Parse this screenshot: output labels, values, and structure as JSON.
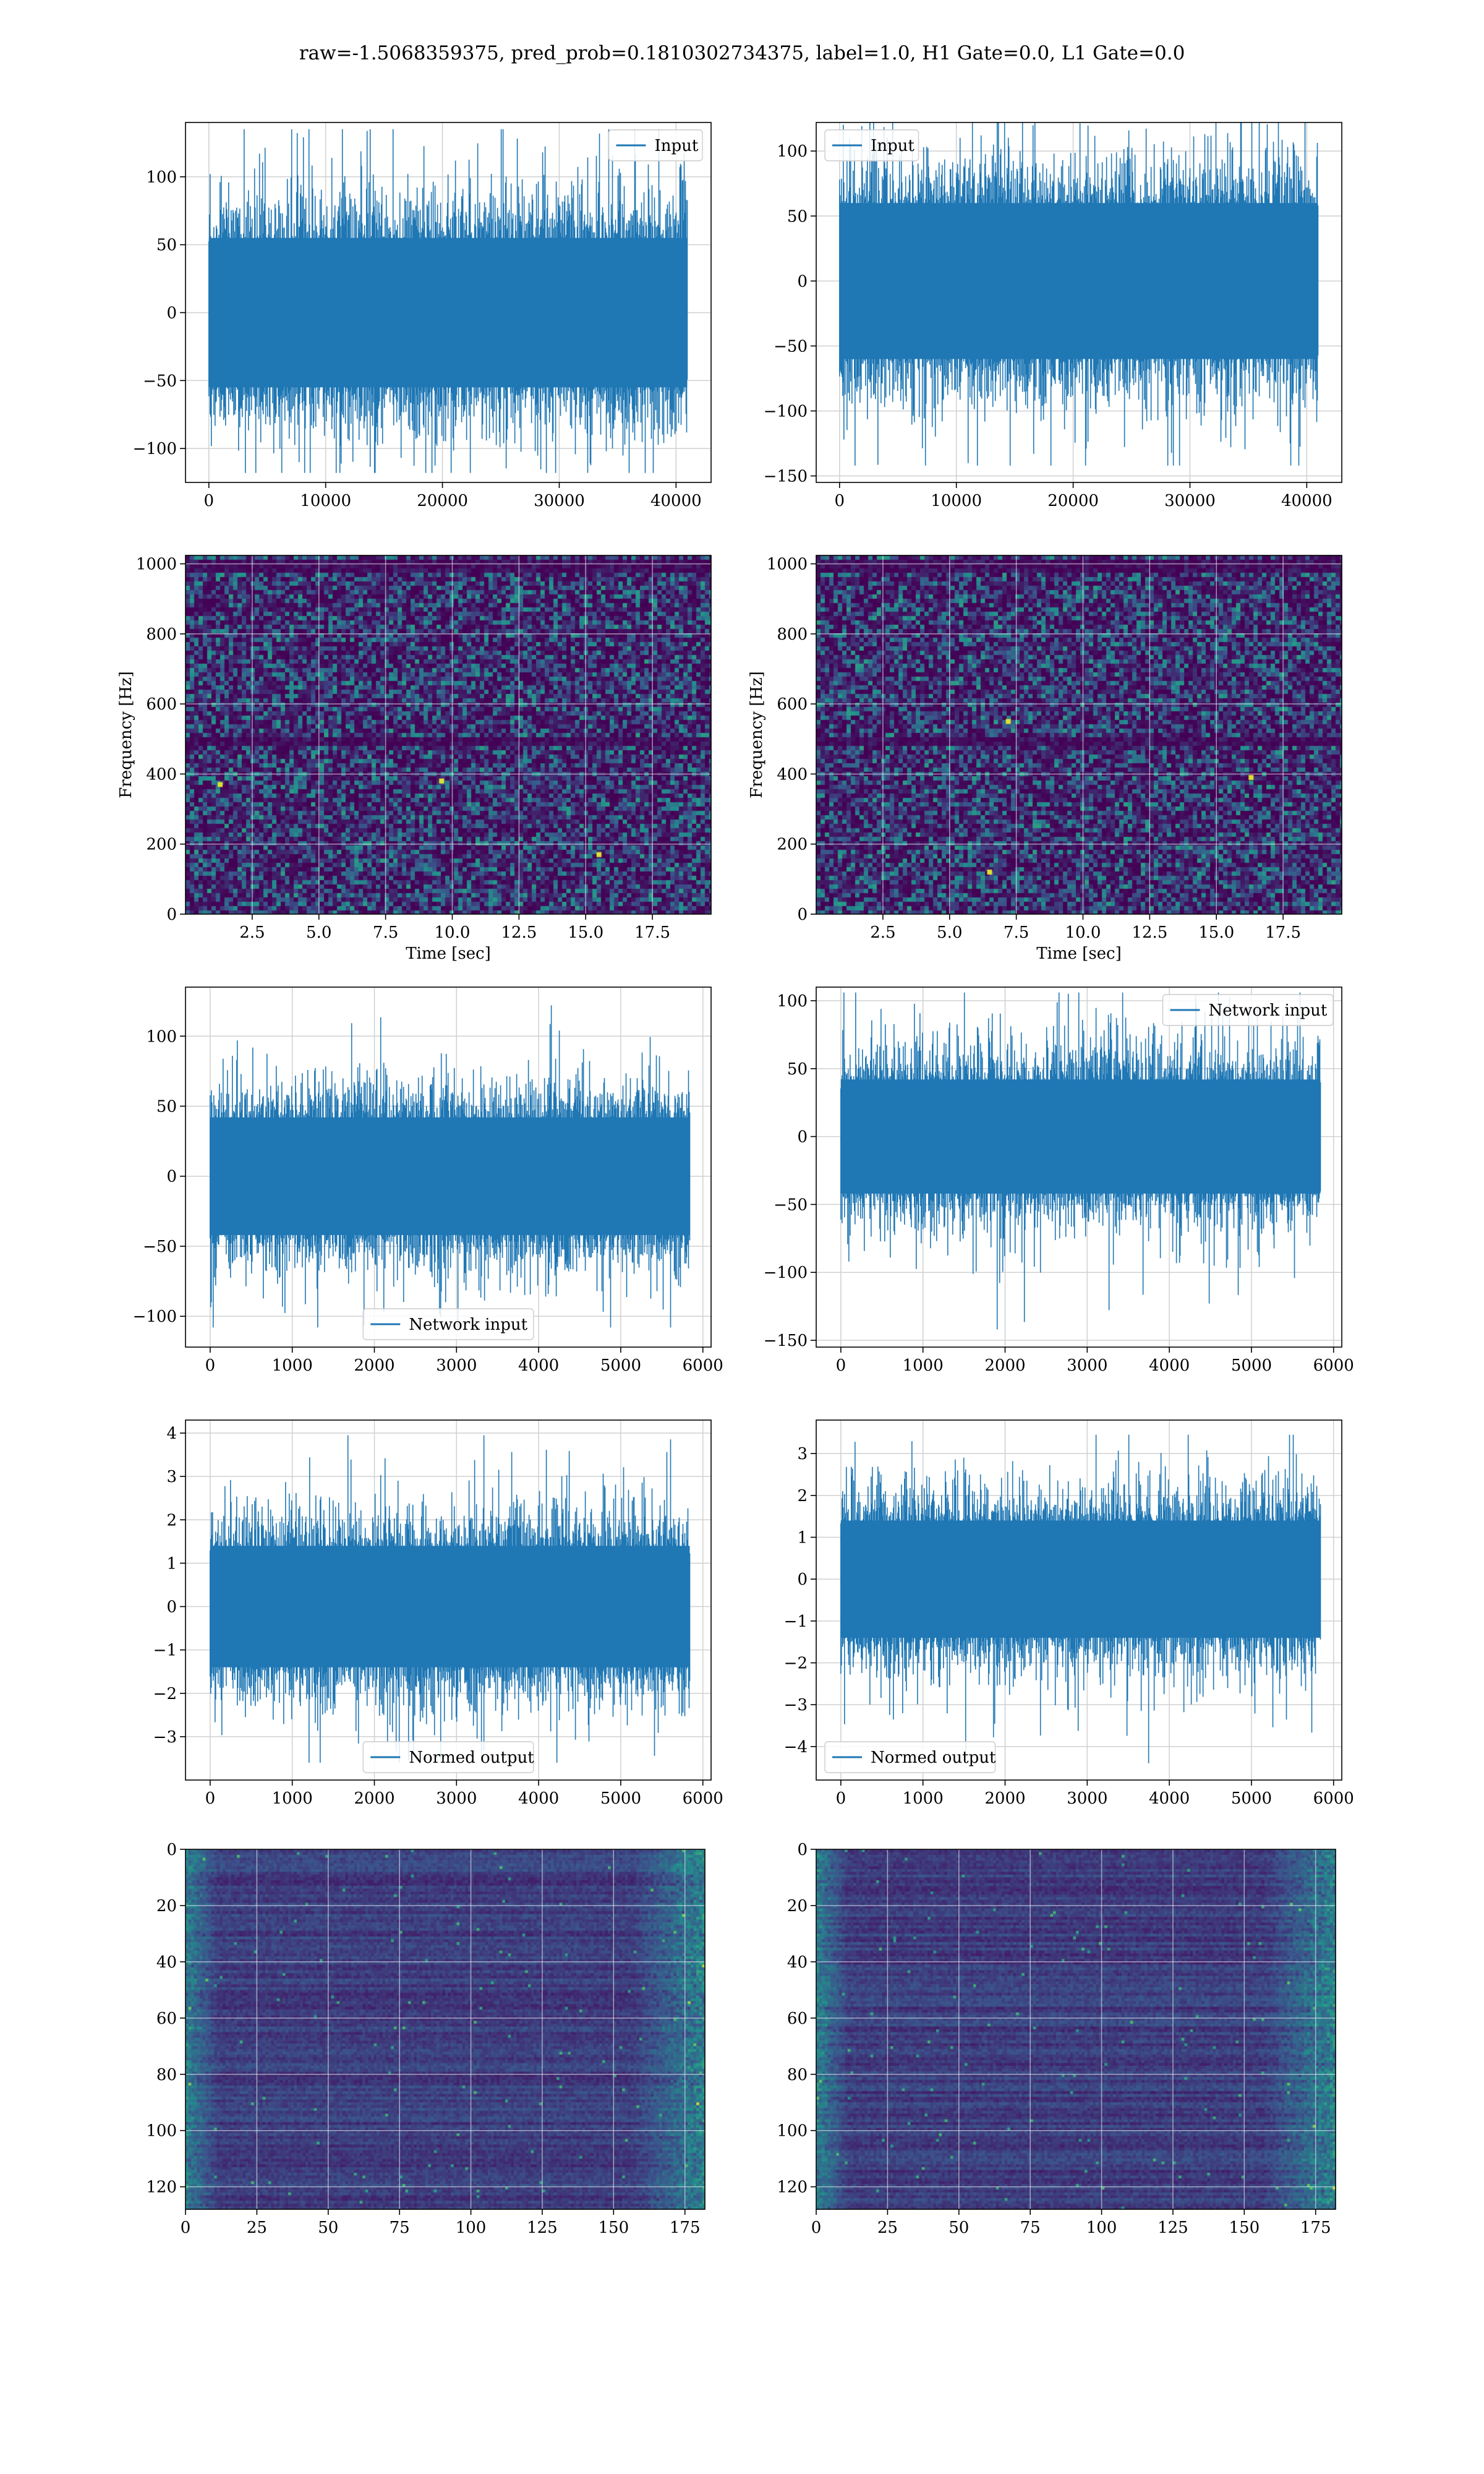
{
  "figure": {
    "title": "raw=-1.5068359375, pred_prob=0.1810302734375, label=1.0, H1 Gate=0.0, L1 Gate=0.0"
  },
  "colors": {
    "series": "#1f77b4",
    "grid": "#d0d0d0",
    "axes": "#000000",
    "viridis_dark": "#440154",
    "viridis_mid": "#21918c",
    "viridis_bright": "#fde725"
  },
  "chart_data": [
    {
      "id": "h1-input",
      "type": "line",
      "style": "dense-noise",
      "title": "",
      "xlabel": "",
      "ylabel": "",
      "xlim": [
        -2000,
        43000
      ],
      "ylim": [
        -125,
        140
      ],
      "xticks": [
        0,
        10000,
        20000,
        30000,
        40000
      ],
      "yticks": [
        -100,
        -50,
        0,
        50,
        100
      ],
      "grid": true,
      "legend": "upper right",
      "series": [
        {
          "name": "Input",
          "x_range": [
            0,
            40960
          ],
          "samples": 40960,
          "body_range": [
            -55,
            55
          ],
          "min": -118,
          "max": 135
        }
      ]
    },
    {
      "id": "l1-input",
      "type": "line",
      "style": "dense-noise",
      "title": "",
      "xlabel": "",
      "ylabel": "",
      "xlim": [
        -2000,
        43000
      ],
      "ylim": [
        -155,
        122
      ],
      "xticks": [
        0,
        10000,
        20000,
        30000,
        40000
      ],
      "yticks": [
        -150,
        -100,
        -50,
        0,
        50,
        100
      ],
      "grid": true,
      "legend": "upper left",
      "series": [
        {
          "name": "Input",
          "x_range": [
            0,
            40960
          ],
          "samples": 40960,
          "body_range": [
            -60,
            60
          ],
          "min": -142,
          "max": 122
        }
      ]
    },
    {
      "id": "h1-spectrogram",
      "type": "heatmap",
      "style": "spectrogram",
      "title": "",
      "xlabel": "Time [sec]",
      "ylabel": "Frequency [Hz]",
      "xlim": [
        0,
        19.7
      ],
      "ylim": [
        0,
        1024
      ],
      "xticks": [
        2.5,
        5.0,
        7.5,
        10.0,
        12.5,
        15.0,
        17.5
      ],
      "yticks": [
        0,
        200,
        400,
        600,
        800,
        1000
      ],
      "grid": true,
      "colormap": "viridis",
      "hot_spots": [
        {
          "t": 9.6,
          "f": 380
        },
        {
          "t": 15.5,
          "f": 170
        },
        {
          "t": 1.3,
          "f": 370
        }
      ],
      "dark_bands_hz": [
        500,
        1000
      ]
    },
    {
      "id": "l1-spectrogram",
      "type": "heatmap",
      "style": "spectrogram",
      "title": "",
      "xlabel": "Time [sec]",
      "ylabel": "Frequency [Hz]",
      "xlim": [
        0,
        19.7
      ],
      "ylim": [
        0,
        1024
      ],
      "xticks": [
        2.5,
        5.0,
        7.5,
        10.0,
        12.5,
        15.0,
        17.5
      ],
      "yticks": [
        0,
        200,
        400,
        600,
        800,
        1000
      ],
      "grid": true,
      "colormap": "viridis",
      "hot_spots": [
        {
          "t": 6.5,
          "f": 120
        },
        {
          "t": 16.3,
          "f": 390
        },
        {
          "t": 7.2,
          "f": 550
        }
      ],
      "dark_bands_hz": [
        500,
        1000
      ]
    },
    {
      "id": "h1-network-input",
      "type": "line",
      "style": "dense-noise",
      "title": "",
      "xlabel": "",
      "ylabel": "",
      "xlim": [
        -300,
        6100
      ],
      "ylim": [
        -122,
        135
      ],
      "xticks": [
        0,
        1000,
        2000,
        3000,
        4000,
        5000,
        6000
      ],
      "yticks": [
        -100,
        -50,
        0,
        50,
        100
      ],
      "grid": true,
      "legend": "lower center",
      "series": [
        {
          "name": "Network input",
          "x_range": [
            0,
            5840
          ],
          "samples": 5840,
          "body_range": [
            -42,
            42
          ],
          "min": -108,
          "max": 122
        }
      ]
    },
    {
      "id": "l1-network-input",
      "type": "line",
      "style": "dense-noise",
      "title": "",
      "xlabel": "",
      "ylabel": "",
      "xlim": [
        -300,
        6100
      ],
      "ylim": [
        -155,
        110
      ],
      "xticks": [
        0,
        1000,
        2000,
        3000,
        4000,
        5000,
        6000
      ],
      "yticks": [
        -150,
        -100,
        -50,
        0,
        50,
        100
      ],
      "grid": true,
      "legend": "upper right",
      "series": [
        {
          "name": "Network input",
          "x_range": [
            0,
            5840
          ],
          "samples": 5840,
          "body_range": [
            -42,
            42
          ],
          "min": -142,
          "max": 106
        }
      ]
    },
    {
      "id": "h1-normed-output",
      "type": "line",
      "style": "dense-noise",
      "title": "",
      "xlabel": "",
      "ylabel": "",
      "xlim": [
        -300,
        6100
      ],
      "ylim": [
        -4.0,
        4.3
      ],
      "xticks": [
        0,
        1000,
        2000,
        3000,
        4000,
        5000,
        6000
      ],
      "yticks": [
        -3,
        -2,
        -1,
        0,
        1,
        2,
        3,
        4
      ],
      "grid": true,
      "legend": "lower center",
      "series": [
        {
          "name": "Normed output",
          "x_range": [
            0,
            5840
          ],
          "samples": 5840,
          "body_range": [
            -1.4,
            1.4
          ],
          "min": -3.6,
          "max": 3.95
        }
      ]
    },
    {
      "id": "l1-normed-output",
      "type": "line",
      "style": "dense-noise",
      "title": "",
      "xlabel": "",
      "ylabel": "",
      "xlim": [
        -300,
        6100
      ],
      "ylim": [
        -4.8,
        3.8
      ],
      "xticks": [
        0,
        1000,
        2000,
        3000,
        4000,
        5000,
        6000
      ],
      "yticks": [
        -4,
        -3,
        -2,
        -1,
        0,
        1,
        2,
        3
      ],
      "grid": true,
      "legend": "lower left",
      "series": [
        {
          "name": "Normed output",
          "x_range": [
            0,
            5840
          ],
          "samples": 5840,
          "body_range": [
            -1.4,
            1.4
          ],
          "min": -4.4,
          "max": 3.45
        }
      ]
    },
    {
      "id": "h1-feature-map",
      "type": "heatmap",
      "style": "feature-map",
      "title": "",
      "xlabel": "",
      "ylabel": "",
      "xlim": [
        0,
        182
      ],
      "ylim": [
        128,
        0
      ],
      "xticks": [
        0,
        25,
        50,
        75,
        100,
        125,
        150,
        175
      ],
      "yticks": [
        0,
        20,
        40,
        60,
        80,
        100,
        120
      ],
      "grid": true,
      "colormap": "viridis",
      "rows": 128,
      "cols": 182
    },
    {
      "id": "l1-feature-map",
      "type": "heatmap",
      "style": "feature-map",
      "title": "",
      "xlabel": "",
      "ylabel": "",
      "xlim": [
        0,
        182
      ],
      "ylim": [
        128,
        0
      ],
      "xticks": [
        0,
        25,
        50,
        75,
        100,
        125,
        150,
        175
      ],
      "yticks": [
        0,
        20,
        40,
        60,
        80,
        100,
        120
      ],
      "grid": true,
      "colormap": "viridis",
      "rows": 128,
      "cols": 182
    }
  ]
}
